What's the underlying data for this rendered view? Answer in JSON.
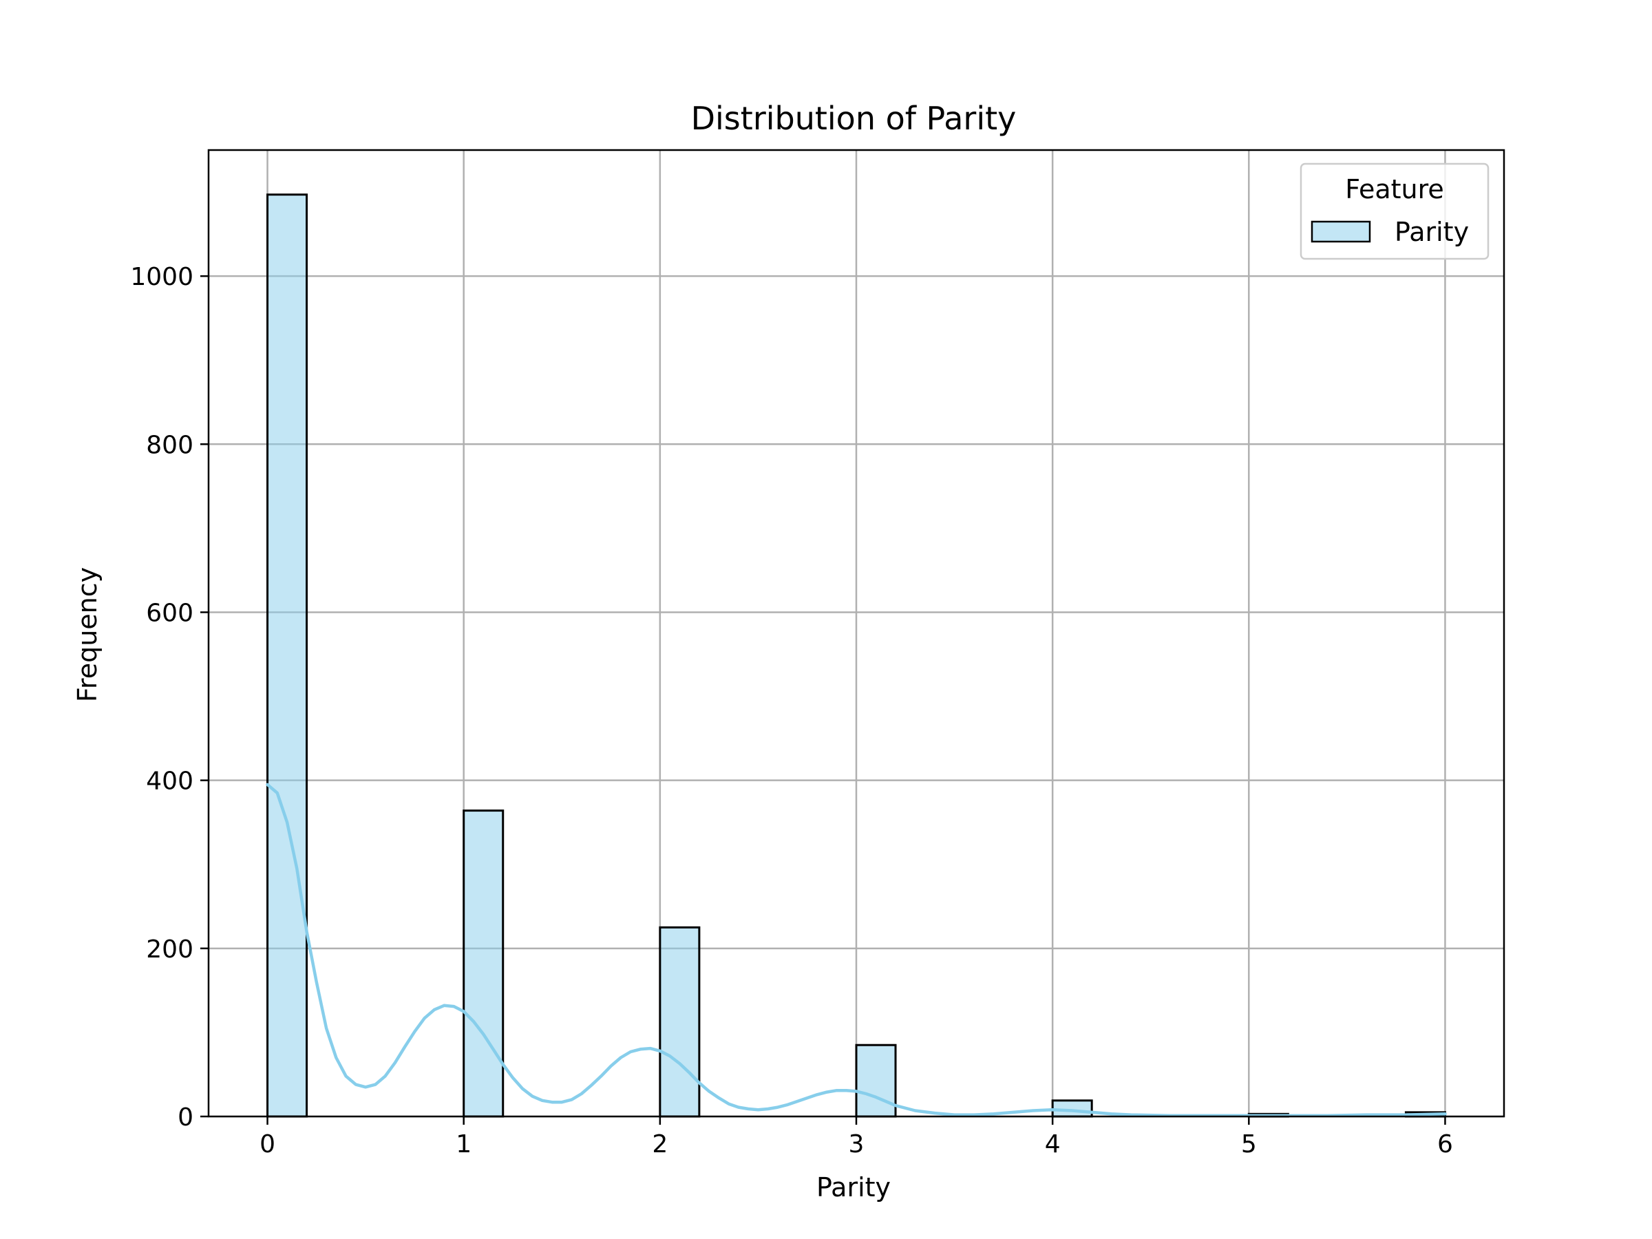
{
  "chart_data": {
    "type": "bar",
    "title": "Distribution of Parity",
    "xlabel": "Parity",
    "ylabel": "Frequency",
    "xlim": [
      -0.3,
      6.3
    ],
    "ylim": [
      0,
      1150
    ],
    "xticks": [
      0,
      1,
      2,
      3,
      4,
      5,
      6
    ],
    "yticks": [
      0,
      200,
      400,
      600,
      800,
      1000
    ],
    "grid": true,
    "bin_width": 0.2,
    "bins": [
      {
        "x0": 0,
        "x1": 0.2,
        "count": 1097
      },
      {
        "x0": 1,
        "x1": 1.2,
        "count": 364
      },
      {
        "x0": 2,
        "x1": 2.2,
        "count": 225
      },
      {
        "x0": 3,
        "x1": 3.2,
        "count": 85
      },
      {
        "x0": 4,
        "x1": 4.2,
        "count": 19
      },
      {
        "x0": 5,
        "x1": 5.2,
        "count": 3
      },
      {
        "x0": 5.8,
        "x1": 6,
        "count": 5
      }
    ],
    "kde": {
      "x": [
        0,
        0.05,
        0.1,
        0.15,
        0.2,
        0.25,
        0.3,
        0.35,
        0.4,
        0.45,
        0.5,
        0.55,
        0.6,
        0.65,
        0.7,
        0.75,
        0.8,
        0.85,
        0.9,
        0.95,
        1.0,
        1.05,
        1.1,
        1.15,
        1.2,
        1.25,
        1.3,
        1.35,
        1.4,
        1.45,
        1.5,
        1.55,
        1.6,
        1.65,
        1.7,
        1.75,
        1.8,
        1.85,
        1.9,
        1.95,
        2.0,
        2.05,
        2.1,
        2.15,
        2.2,
        2.25,
        2.3,
        2.35,
        2.4,
        2.45,
        2.5,
        2.55,
        2.6,
        2.65,
        2.7,
        2.75,
        2.8,
        2.85,
        2.9,
        2.95,
        3.0,
        3.05,
        3.1,
        3.15,
        3.2,
        3.3,
        3.4,
        3.5,
        3.6,
        3.7,
        3.8,
        3.9,
        4.0,
        4.1,
        4.2,
        4.3,
        4.4,
        4.6,
        4.8,
        5.0,
        5.2,
        5.4,
        5.6,
        5.8,
        6.0
      ],
      "y": [
        395,
        385,
        350,
        295,
        220,
        160,
        105,
        70,
        48,
        38,
        35,
        38,
        48,
        64,
        83,
        101,
        117,
        127,
        132,
        131,
        125,
        113,
        98,
        80,
        62,
        46,
        33,
        24,
        19,
        17,
        17,
        20,
        27,
        37,
        48,
        60,
        70,
        77,
        80,
        81,
        78,
        72,
        63,
        52,
        40,
        30,
        22,
        15,
        11,
        9,
        8,
        9,
        11,
        14,
        18,
        22,
        26,
        29,
        31,
        31,
        30,
        27,
        23,
        18,
        13,
        7,
        4,
        2,
        2,
        3,
        5,
        7,
        8,
        7,
        5,
        3,
        2,
        1,
        1,
        1,
        1,
        1,
        2,
        2,
        3
      ],
      "color": "#87CEEB"
    },
    "bar_fill": "#87CEEB",
    "bar_fill_opacity": 0.5,
    "bar_edge": "#000000",
    "legend": {
      "title": "Feature",
      "entries": [
        "Parity"
      ],
      "placement": "top-right"
    }
  }
}
